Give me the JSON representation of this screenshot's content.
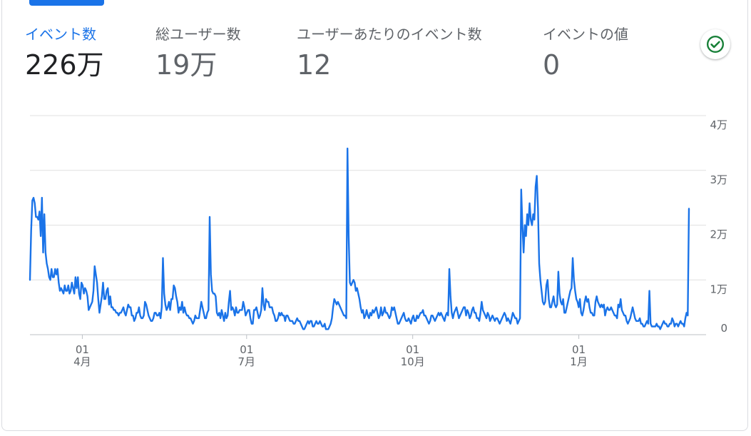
{
  "metrics": [
    {
      "label": "イベント数",
      "value": "226万"
    },
    {
      "label": "総ユーザー数",
      "value": "19万"
    },
    {
      "label": "ユーザーあたりのイベント数",
      "value": "12"
    },
    {
      "label": "イベントの値",
      "value": "0"
    }
  ],
  "colors": {
    "accent": "#1a73e8",
    "line": "#1a73e8",
    "check": "#188038",
    "grid": "#e0e0e0"
  },
  "icons": {
    "status": "check-circle-icon"
  },
  "chart_data": {
    "type": "line",
    "ylim": [
      0,
      40000
    ],
    "yticks": [
      {
        "value": 0,
        "label": "0"
      },
      {
        "value": 10000,
        "label": "1万"
      },
      {
        "value": 20000,
        "label": "2万"
      },
      {
        "value": 30000,
        "label": "3万"
      },
      {
        "value": 40000,
        "label": "4万"
      }
    ],
    "xticks": [
      {
        "value": "2023-04-01",
        "day": "01",
        "month": "4月"
      },
      {
        "value": "2023-07-01",
        "day": "01",
        "month": "7月"
      },
      {
        "value": "2023-10-01",
        "day": "01",
        "month": "10月"
      },
      {
        "value": "2024-01-01",
        "day": "01",
        "month": "1月"
      }
    ],
    "xrange": [
      "2023-03-03",
      "2024-03-02"
    ],
    "series": [
      {
        "values": [
          10000,
          19000,
          24500,
          25000,
          24000,
          21500,
          21500,
          21000,
          22500,
          18000,
          25000,
          15000,
          22000,
          15000,
          13000,
          12000,
          10500,
          10000,
          12000,
          10500,
          10500,
          12000,
          11000,
          12000,
          9500,
          8000,
          8500,
          8000,
          7500,
          9000,
          8000,
          8000,
          9000,
          7500,
          8000,
          9500,
          8500,
          7500,
          10500,
          8500,
          10500,
          7500,
          6500,
          9500,
          9000,
          7500,
          8500,
          8000,
          7000,
          4500,
          5000,
          5500,
          6000,
          8000,
          12500,
          11000,
          9500,
          6500,
          4000,
          5500,
          7000,
          9500,
          6500,
          6500,
          8000,
          8500,
          5500,
          7000,
          5000,
          5000,
          4500,
          4500,
          4000,
          4000,
          3500,
          4000,
          4000,
          4500,
          5000,
          4000,
          3500,
          4500,
          5500,
          5000,
          5000,
          3500,
          3500,
          2500,
          3000,
          4000,
          4000,
          5000,
          3500,
          3000,
          3000,
          3500,
          6000,
          5500,
          4500,
          3500,
          3000,
          2500,
          2500,
          3000,
          4000,
          4000,
          3500,
          3500,
          4000,
          3000,
          5000,
          14000,
          7500,
          5500,
          4500,
          5000,
          6000,
          4500,
          6500,
          6500,
          9000,
          8500,
          7000,
          6000,
          4000,
          5000,
          4500,
          6000,
          4000,
          5000,
          4000,
          3500,
          3500,
          3000,
          3000,
          2500,
          2000,
          2500,
          3500,
          3000,
          3000,
          3000,
          4500,
          6000,
          5000,
          4000,
          3000,
          3000,
          4000,
          4500,
          21500,
          11000,
          8000,
          7500,
          7500,
          7000,
          4000,
          3500,
          4000,
          3000,
          4500,
          3500,
          2500,
          4000,
          3000,
          3500,
          6000,
          8000,
          4500,
          5000,
          4500,
          3500,
          5000,
          4000,
          4000,
          4500,
          4500,
          4500,
          6000,
          5000,
          3500,
          4000,
          4500,
          4500,
          3000,
          2000,
          2000,
          4500,
          4500,
          5000,
          4000,
          3000,
          3500,
          4500,
          8500,
          5500,
          4500,
          6500,
          6000,
          6000,
          5000,
          5000,
          5000,
          4000,
          3500,
          2500,
          2500,
          3000,
          4000,
          3500,
          4000,
          3500,
          3500,
          2500,
          3500,
          3500,
          3000,
          2500,
          2500,
          2500,
          2000,
          2000,
          2500,
          3000,
          2500,
          2500,
          2000,
          1500,
          1000,
          1000,
          1500,
          2000,
          2500,
          2000,
          2500,
          2500,
          1500,
          1500,
          2000,
          2500,
          2000,
          2000,
          2500,
          2000,
          1500,
          1500,
          2000,
          1000,
          1000,
          1000,
          1500,
          2000,
          3000,
          5000,
          6500,
          6000,
          5500,
          6000,
          5500,
          5000,
          4500,
          4000,
          3500,
          3500,
          3000,
          34000,
          18000,
          9500,
          9000,
          9500,
          10000,
          9500,
          8000,
          8500,
          7500,
          6500,
          5000,
          4000,
          4500,
          3000,
          3500,
          4500,
          3500,
          3000,
          4000,
          3500,
          4500,
          4000,
          4500,
          5000,
          4000,
          3000,
          3500,
          5000,
          3500,
          4000,
          5000,
          4000,
          4000,
          3500,
          3000,
          3500,
          5000,
          4500,
          5000,
          4000,
          3000,
          2000,
          2000,
          2500,
          3000,
          3500,
          4000,
          3000,
          2500,
          2500,
          3000,
          2500,
          2000,
          3000,
          3500,
          2500,
          2500,
          3500,
          3000,
          3500,
          4000,
          4000,
          4500,
          3500,
          3500,
          3000,
          2500,
          2000,
          2500,
          3500,
          3500,
          3000,
          2500,
          3000,
          3500,
          4000,
          3500,
          4000,
          3500,
          3000,
          2500,
          3500,
          4000,
          3500,
          12000,
          7000,
          4000,
          3000,
          4000,
          4500,
          5000,
          4000,
          3000,
          3500,
          4000,
          4500,
          5000,
          5000,
          3500,
          4500,
          4000,
          3000,
          3500,
          4500,
          5000,
          4000,
          4000,
          3000,
          3000,
          2500,
          4000,
          6000,
          4500,
          4000,
          3500,
          3000,
          4000,
          3500,
          2500,
          3000,
          3500,
          3000,
          2500,
          3000,
          3000,
          2500,
          2000,
          2500,
          3000,
          3500,
          4000,
          3500,
          2500,
          3000,
          2500,
          2000,
          3000,
          4000,
          3500,
          3000,
          3000,
          2000,
          2500,
          3000,
          26500,
          20000,
          15000,
          20000,
          18000,
          22000,
          20000,
          24000,
          21000,
          20000,
          22000,
          21000,
          27000,
          29000,
          23000,
          13000,
          10000,
          8000,
          6000,
          5500,
          6000,
          9000,
          10000,
          6500,
          5000,
          5000,
          6000,
          7000,
          5500,
          5000,
          5500,
          11500,
          7500,
          6000,
          5500,
          6500,
          4000,
          4000,
          5000,
          6000,
          7000,
          8000,
          8500,
          14000,
          10000,
          8000,
          6500,
          6000,
          5000,
          6500,
          4000,
          3500,
          4500,
          6000,
          7000,
          6000,
          6500,
          5000,
          4000,
          4000,
          3500,
          3500,
          6000,
          7000,
          6000,
          5500,
          5000,
          5500,
          5000,
          5500,
          3500,
          4500,
          5000,
          4500,
          4500,
          5000,
          4500,
          4000,
          3500,
          3500,
          3000,
          5500,
          5000,
          6500,
          4500,
          4000,
          3500,
          3500,
          2500,
          2000,
          2500,
          3000,
          4000,
          5000,
          4000,
          3000,
          2500,
          2500,
          2500,
          3000,
          2000,
          2000,
          1500,
          1500,
          2000,
          2500,
          2000,
          8000,
          2000,
          1500,
          1500,
          1500,
          1500,
          2000,
          1500,
          1500,
          1000,
          1500,
          2000,
          2500,
          2000,
          2000,
          1500,
          1500,
          2000,
          2000,
          3000,
          2500,
          1500,
          2000,
          2000,
          1500,
          2000,
          2500,
          2000,
          2000,
          1500,
          3000,
          4000,
          3500,
          23000
        ]
      }
    ]
  }
}
